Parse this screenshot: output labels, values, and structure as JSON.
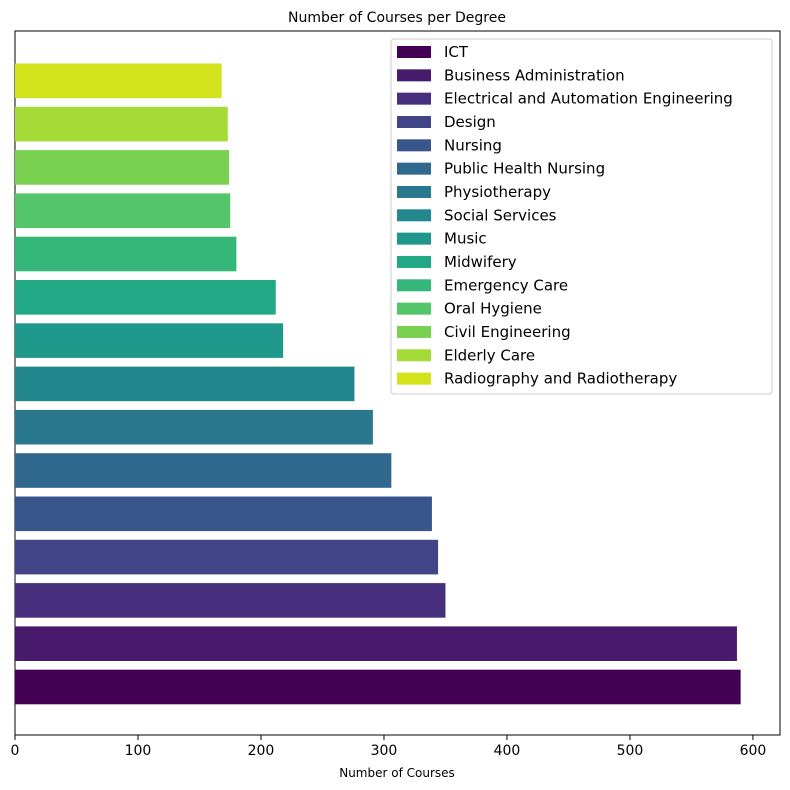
{
  "chart_data": {
    "type": "bar",
    "orientation": "horizontal",
    "title": "Number of Courses per Degree",
    "xlabel": "Number of Courses",
    "ylabel": "",
    "xlim": [
      0,
      622
    ],
    "xticks": [
      0,
      100,
      200,
      300,
      400,
      500,
      600
    ],
    "grid": false,
    "legend_position": "top-right",
    "categories": [
      "ICT",
      "Business Administration",
      "Electrical and Automation Engineering",
      "Design",
      "Nursing",
      "Public Health Nursing",
      "Physiotherapy",
      "Social Services",
      "Music",
      "Midwifery",
      "Emergency Care",
      "Oral Hygiene",
      "Civil Engineering",
      "Elderly Care",
      "Radiography and Radiotherapy"
    ],
    "values": [
      590,
      587,
      350,
      344,
      339,
      306,
      291,
      276,
      218,
      212,
      180,
      175,
      174,
      173,
      168
    ],
    "colors": [
      "#440154",
      "#481a6c",
      "#472f7d",
      "#414487",
      "#39568c",
      "#31688e",
      "#2a788e",
      "#23888e",
      "#1f988b",
      "#22a884",
      "#35b779",
      "#54c568",
      "#7ad151",
      "#a5db36",
      "#d2e21b",
      "#fde725"
    ]
  }
}
